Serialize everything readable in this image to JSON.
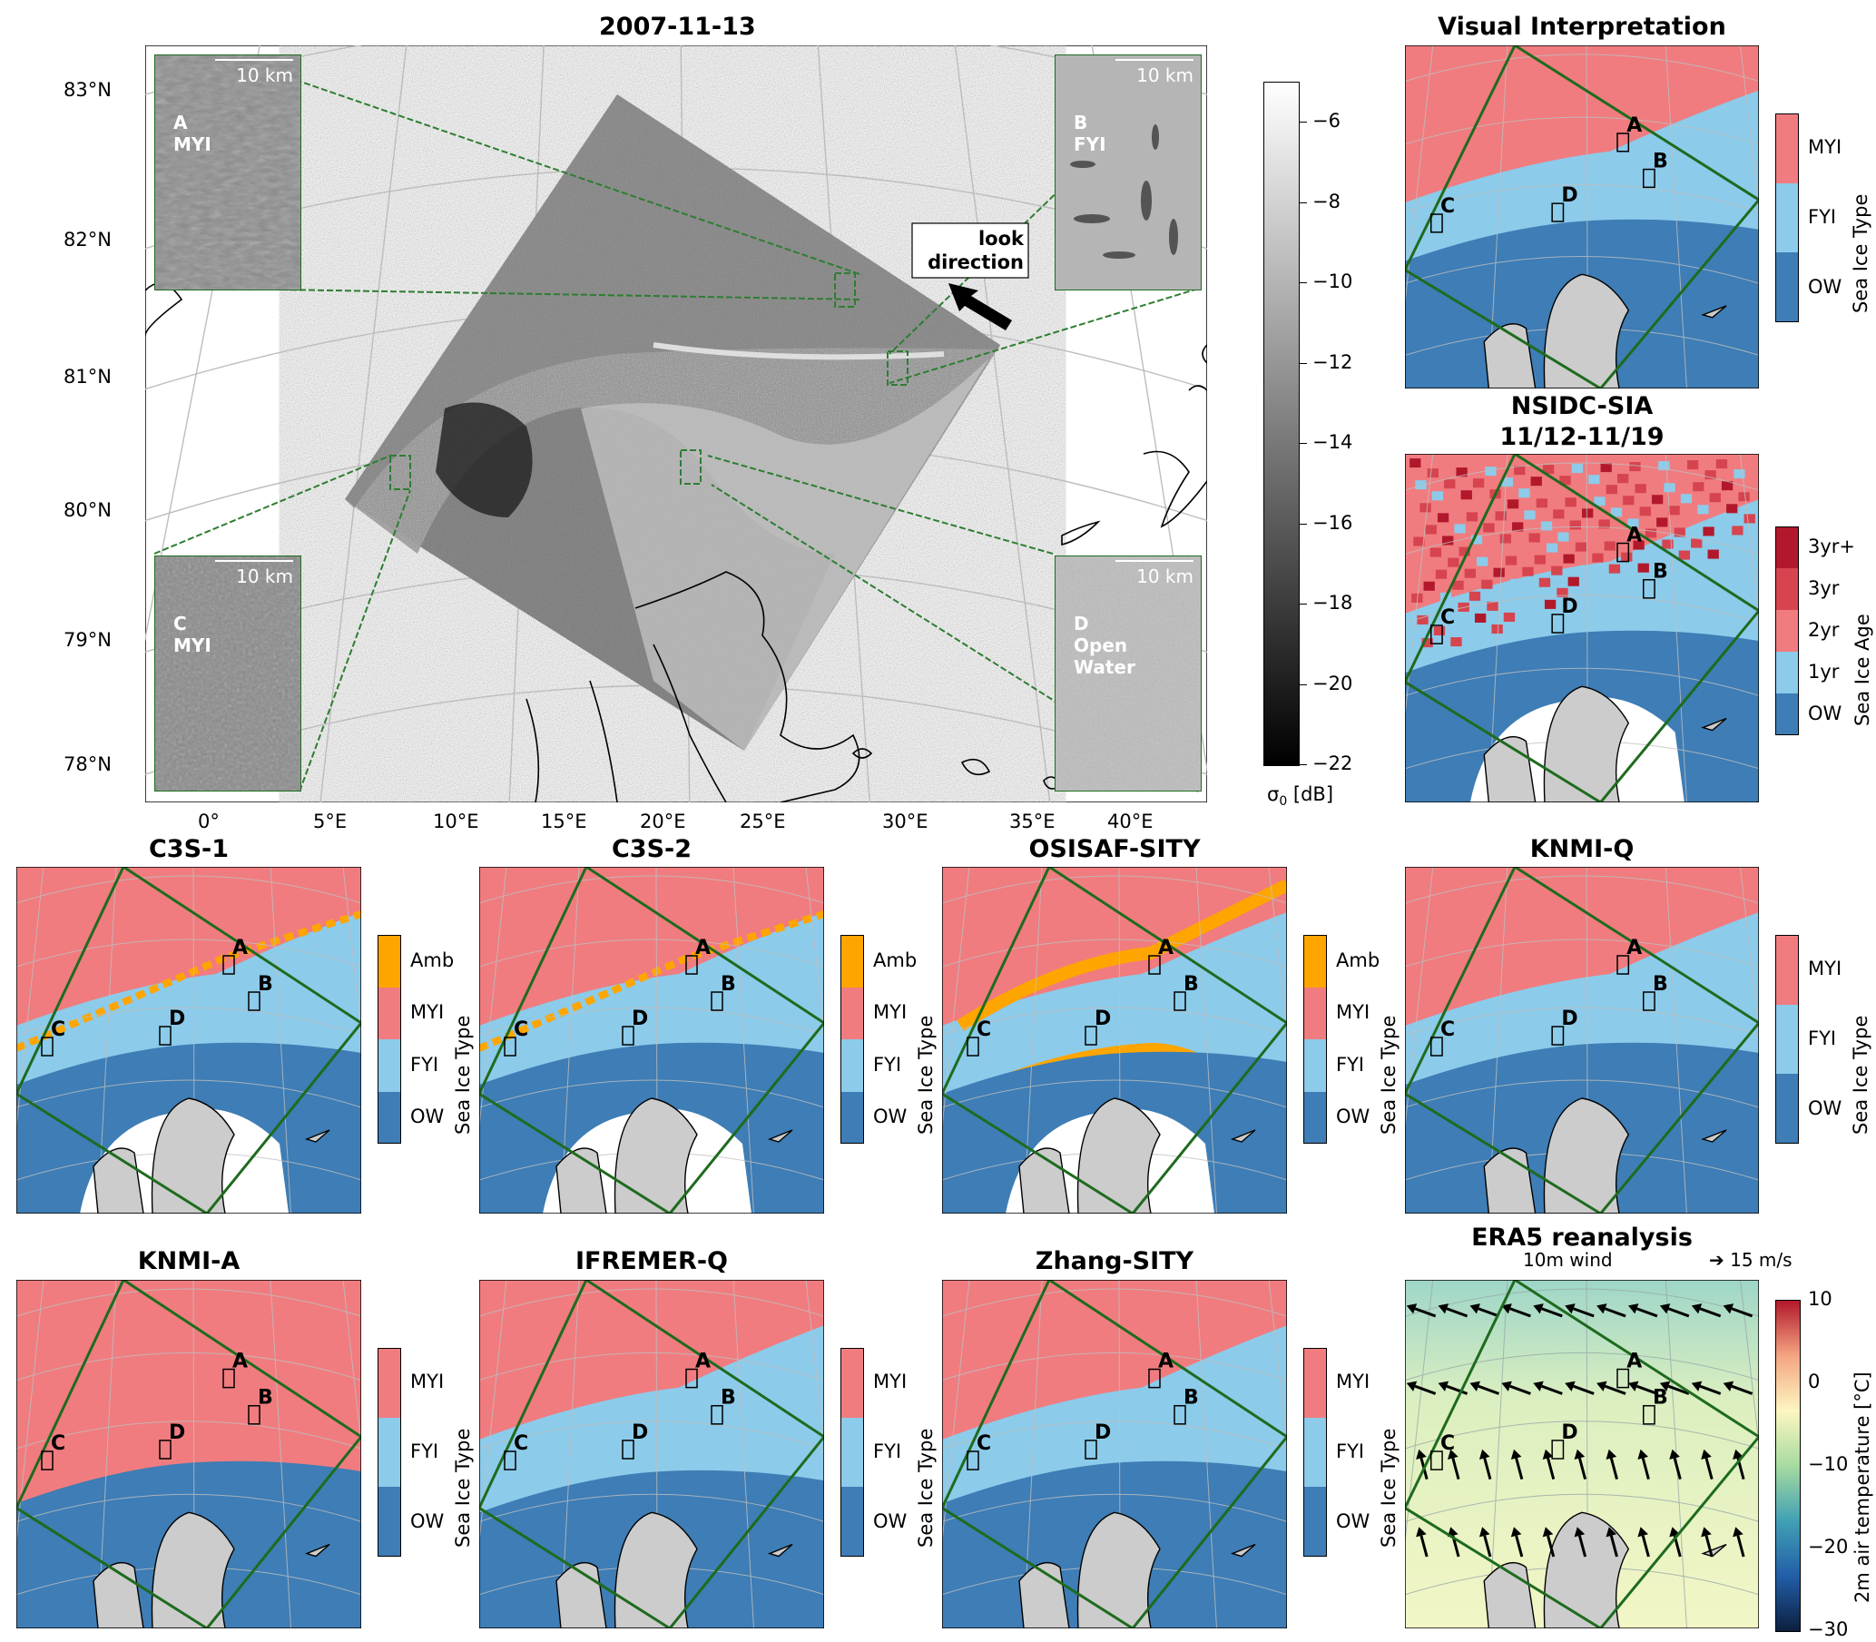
{
  "main": {
    "title": "2007-11-13",
    "lat_labels": [
      "83°N",
      "82°N",
      "81°N",
      "80°N",
      "79°N",
      "78°N"
    ],
    "lon_labels": [
      "0°",
      "5°E",
      "10°E",
      "15°E",
      "20°E",
      "25°E",
      "30°E",
      "35°E",
      "40°E"
    ],
    "look_direction": [
      "look",
      "direction"
    ],
    "insets": [
      {
        "id": "A",
        "scale": "10 km",
        "label": [
          "A",
          "MYI"
        ]
      },
      {
        "id": "B",
        "scale": "10 km",
        "label": [
          "B",
          "FYI"
        ]
      },
      {
        "id": "C",
        "scale": "10 km",
        "label": [
          "C",
          "MYI"
        ]
      },
      {
        "id": "D",
        "scale": "10 km",
        "label": [
          "D",
          "Open",
          "Water"
        ]
      }
    ],
    "colorbar": {
      "ticks": [
        "−6",
        "−8",
        "−10",
        "−12",
        "−14",
        "−16",
        "−18",
        "−20",
        "−22"
      ],
      "label": "σ0 [dB]",
      "range": [
        -22,
        -5
      ]
    }
  },
  "panels": [
    {
      "id": "visual",
      "title": "Visual Interpretation",
      "legend": [
        "MYI",
        "FYI",
        "OW"
      ],
      "cb_label": "Sea Ice Type"
    },
    {
      "id": "nsidc",
      "title_lines": [
        "NSIDC-SIA",
        "11/12-11/19"
      ],
      "legend": [
        "3yr+",
        "3yr",
        "2yr",
        "1yr",
        "OW"
      ],
      "cb_label": "Sea Ice Age"
    },
    {
      "id": "c3s1",
      "title": "C3S-1",
      "legend": [
        "Amb",
        "MYI",
        "FYI",
        "OW"
      ],
      "cb_label": "Sea Ice Type"
    },
    {
      "id": "c3s2",
      "title": "C3S-2",
      "legend": [
        "Amb",
        "MYI",
        "FYI",
        "OW"
      ],
      "cb_label": "Sea Ice Type"
    },
    {
      "id": "osisaf",
      "title": "OSISAF-SITY",
      "legend": [
        "Amb",
        "MYI",
        "FYI",
        "OW"
      ],
      "cb_label": "Sea Ice Type"
    },
    {
      "id": "knmiq",
      "title": "KNMI-Q",
      "legend": [
        "MYI",
        "FYI",
        "OW"
      ],
      "cb_label": "Sea Ice Type"
    },
    {
      "id": "knmia",
      "title": "KNMI-A",
      "legend": [
        "MYI",
        "FYI",
        "OW"
      ],
      "cb_label": "Sea Ice Type"
    },
    {
      "id": "ifremer",
      "title": "IFREMER-Q",
      "legend": [
        "MYI",
        "FYI",
        "OW"
      ],
      "cb_label": "Sea Ice Type"
    },
    {
      "id": "zhang",
      "title": "Zhang-SITY",
      "legend": [
        "MYI",
        "FYI",
        "OW"
      ],
      "cb_label": "Sea Ice Type"
    },
    {
      "id": "era5",
      "title": "ERA5 reanalysis",
      "subtitle": "10m wind",
      "wind_key": "15 m/s",
      "cb_ticks": [
        "10",
        "0",
        "−10",
        "−20",
        "−30"
      ],
      "cb_label": "2m air temperature [°C]"
    }
  ],
  "point_labels": [
    "A",
    "B",
    "C",
    "D"
  ],
  "colors": {
    "MYI": "#f07c7f",
    "FYI": "#8ccbea",
    "OW": "#3e7db5",
    "Amb": "#ffa500",
    "age3plus": "#b2182b",
    "age3": "#d6444f",
    "age2": "#f07c7f",
    "land": "#cccccc",
    "frame": "#1e6b1e"
  }
}
